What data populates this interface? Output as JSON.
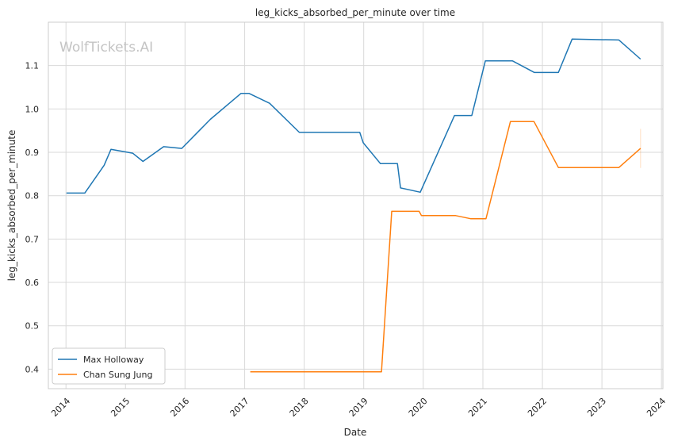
{
  "watermark": "WolfTickets.AI",
  "chart_data": {
    "type": "line",
    "title": "leg_kicks_absorbed_per_minute over time",
    "xlabel": "Date",
    "ylabel": "leg_kicks_absorbed_per_minute",
    "x_type": "date",
    "xlim": [
      "2013-09-15",
      "2024-01-10"
    ],
    "ylim": [
      0.355,
      1.2
    ],
    "x_ticks": [
      "2014",
      "2015",
      "2016",
      "2017",
      "2018",
      "2019",
      "2020",
      "2021",
      "2022",
      "2023",
      "2024"
    ],
    "y_ticks": [
      "0.4",
      "0.5",
      "0.6",
      "0.7",
      "0.8",
      "0.9",
      "1.0",
      "1.1"
    ],
    "grid": true,
    "legend_position": "lower-left",
    "series": [
      {
        "name": "Max Holloway",
        "color": "#1f77b4",
        "points": [
          [
            "2014-01-04",
            0.806
          ],
          [
            "2014-04-26",
            0.806
          ],
          [
            "2014-08-23",
            0.87
          ],
          [
            "2014-10-04",
            0.907
          ],
          [
            "2015-02-14",
            0.898
          ],
          [
            "2015-04-18",
            0.879
          ],
          [
            "2015-08-23",
            0.913
          ],
          [
            "2015-12-12",
            0.909
          ],
          [
            "2016-06-04",
            0.976
          ],
          [
            "2016-12-10",
            1.036
          ],
          [
            "2017-01-27",
            1.036
          ],
          [
            "2017-06-03",
            1.013
          ],
          [
            "2017-12-02",
            0.946
          ],
          [
            "2018-04-01",
            0.946
          ],
          [
            "2018-08-01",
            0.946
          ],
          [
            "2018-12-08",
            0.946
          ],
          [
            "2018-12-29",
            0.922
          ],
          [
            "2019-04-13",
            0.874
          ],
          [
            "2019-07-27",
            0.874
          ],
          [
            "2019-08-15",
            0.818
          ],
          [
            "2019-12-14",
            0.808
          ],
          [
            "2020-07-11",
            0.985
          ],
          [
            "2020-10-25",
            0.985
          ],
          [
            "2021-01-16",
            1.111
          ],
          [
            "2021-07-01",
            1.111
          ],
          [
            "2021-11-13",
            1.084
          ],
          [
            "2022-04-09",
            1.084
          ],
          [
            "2022-07-02",
            1.161
          ],
          [
            "2023-04-15",
            1.159
          ],
          [
            "2023-08-26",
            1.115
          ]
        ]
      },
      {
        "name": "Chan Sung Jung",
        "color": "#ff7f0e",
        "points": [
          [
            "2017-02-04",
            0.394
          ],
          [
            "2019-04-20",
            0.394
          ],
          [
            "2019-06-22",
            0.764
          ],
          [
            "2019-12-07",
            0.764
          ],
          [
            "2019-12-21",
            0.754
          ],
          [
            "2020-07-18",
            0.754
          ],
          [
            "2020-10-17",
            0.747
          ],
          [
            "2021-01-20",
            0.747
          ],
          [
            "2021-06-19",
            0.971
          ],
          [
            "2021-11-10",
            0.971
          ],
          [
            "2022-04-09",
            0.865
          ],
          [
            "2023-04-15",
            0.865
          ],
          [
            "2023-08-26",
            0.909
          ]
        ]
      }
    ]
  }
}
